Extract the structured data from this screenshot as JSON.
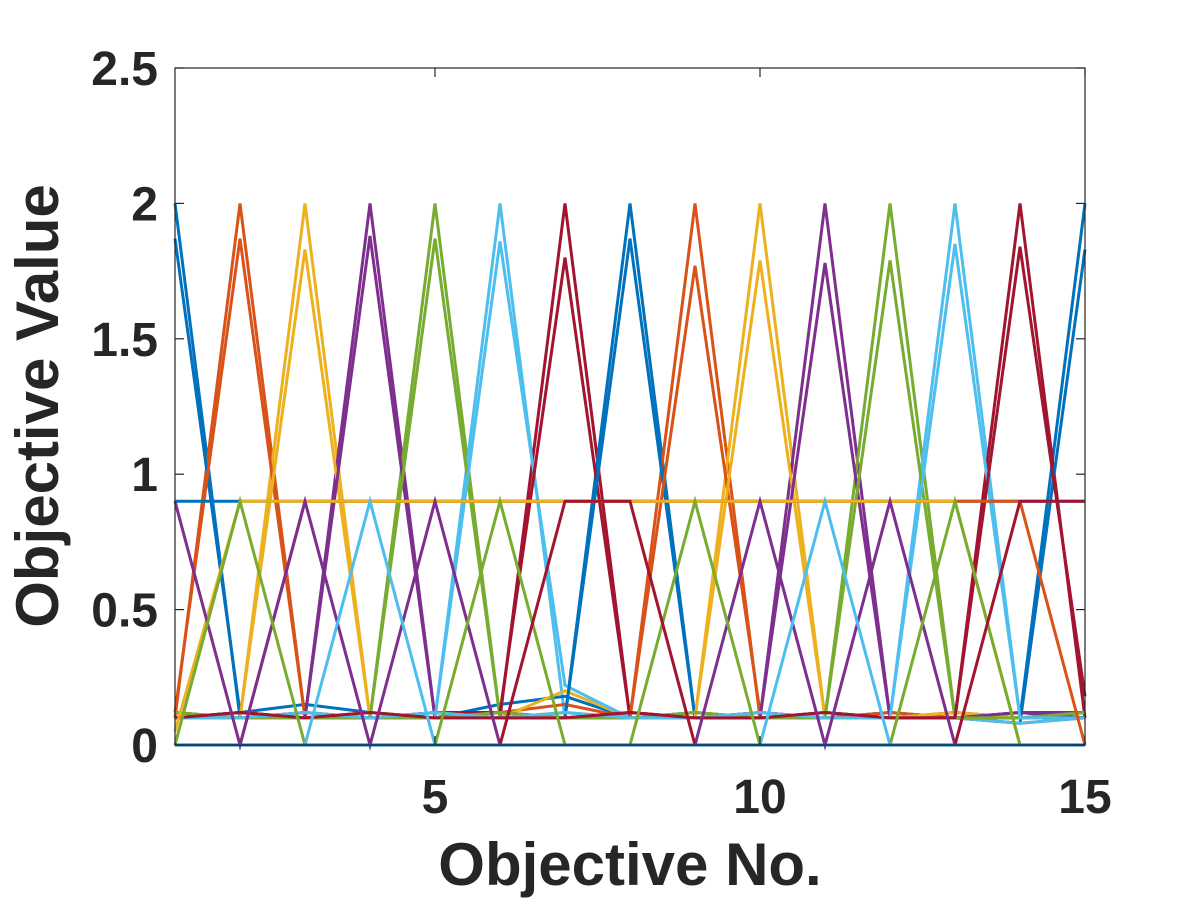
{
  "chart_data": {
    "type": "line",
    "title": "",
    "xlabel": "Objective No.",
    "ylabel": "Objective Value",
    "xlim": [
      1,
      15
    ],
    "ylim": [
      0,
      2.5
    ],
    "xticks": [
      5,
      10,
      15
    ],
    "xtick_labels": [
      "5",
      "10",
      "15"
    ],
    "yticks": [
      0,
      0.5,
      1,
      1.5,
      2,
      2.5
    ],
    "ytick_labels": [
      "0",
      "0.5",
      "1",
      "1.5",
      "2",
      "2.5"
    ],
    "grid": false,
    "legend": "none",
    "colors": [
      "#0072BD",
      "#D95319",
      "#EDB120",
      "#7E2F8E",
      "#77AC30",
      "#4DBEEE",
      "#A2142F"
    ],
    "x": [
      1,
      2,
      3,
      4,
      5,
      6,
      7,
      8,
      9,
      10,
      11,
      12,
      13,
      14,
      15
    ],
    "series": [
      {
        "values": [
          2.0,
          0.1,
          0.1,
          0.1,
          0.1,
          0.1,
          0.1,
          0.1,
          0.1,
          0.1,
          0.1,
          0.1,
          0.1,
          0.1,
          2.0
        ]
      },
      {
        "values": [
          0.1,
          2.0,
          0.1,
          0.1,
          0.1,
          0.1,
          0.1,
          0.1,
          0.1,
          0.1,
          0.1,
          0.1,
          0.1,
          0.1,
          0.1
        ]
      },
      {
        "values": [
          0.1,
          0.1,
          2.0,
          0.1,
          0.1,
          0.1,
          0.1,
          0.1,
          0.1,
          0.1,
          0.1,
          0.1,
          0.1,
          0.1,
          0.1
        ]
      },
      {
        "values": [
          0.1,
          0.1,
          0.1,
          2.0,
          0.1,
          0.1,
          0.1,
          0.1,
          0.1,
          0.1,
          0.1,
          0.1,
          0.1,
          0.1,
          0.1
        ]
      },
      {
        "values": [
          0.1,
          0.1,
          0.1,
          0.1,
          2.0,
          0.1,
          0.1,
          0.1,
          0.1,
          0.1,
          0.1,
          0.1,
          0.1,
          0.1,
          0.1
        ]
      },
      {
        "values": [
          0.1,
          0.1,
          0.1,
          0.1,
          0.1,
          2.0,
          0.1,
          0.1,
          0.1,
          0.1,
          0.1,
          0.1,
          0.1,
          0.1,
          0.1
        ]
      },
      {
        "values": [
          0.1,
          0.1,
          0.1,
          0.1,
          0.1,
          0.1,
          2.0,
          0.1,
          0.1,
          0.1,
          0.1,
          0.1,
          0.1,
          0.1,
          0.1
        ]
      },
      {
        "values": [
          0.1,
          0.1,
          0.1,
          0.1,
          0.1,
          0.1,
          0.1,
          2.0,
          0.1,
          0.1,
          0.1,
          0.1,
          0.1,
          0.1,
          0.1
        ]
      },
      {
        "values": [
          0.1,
          0.1,
          0.1,
          0.1,
          0.1,
          0.1,
          0.1,
          0.1,
          2.0,
          0.1,
          0.1,
          0.1,
          0.1,
          0.1,
          0.1
        ]
      },
      {
        "values": [
          0.1,
          0.1,
          0.1,
          0.1,
          0.1,
          0.1,
          0.1,
          0.1,
          0.1,
          2.0,
          0.1,
          0.1,
          0.1,
          0.1,
          0.1
        ]
      },
      {
        "values": [
          0.1,
          0.1,
          0.1,
          0.1,
          0.1,
          0.1,
          0.1,
          0.1,
          0.1,
          0.1,
          2.0,
          0.1,
          0.1,
          0.1,
          0.1
        ]
      },
      {
        "values": [
          0.1,
          0.1,
          0.1,
          0.1,
          0.1,
          0.1,
          0.1,
          0.1,
          0.1,
          0.1,
          0.1,
          2.0,
          0.1,
          0.1,
          0.1
        ]
      },
      {
        "values": [
          0.1,
          0.1,
          0.1,
          0.1,
          0.1,
          0.1,
          0.1,
          0.1,
          0.1,
          0.1,
          0.1,
          0.1,
          2.0,
          0.1,
          0.1
        ]
      },
      {
        "values": [
          0.1,
          0.1,
          0.1,
          0.1,
          0.1,
          0.1,
          0.1,
          0.1,
          0.1,
          0.1,
          0.1,
          0.1,
          0.1,
          2.0,
          0.1
        ]
      },
      {
        "values": [
          1.87,
          0.12,
          0.15,
          0.12,
          0.1,
          0.15,
          0.18,
          0.1,
          0.12,
          0.1,
          0.1,
          0.12,
          0.1,
          0.08,
          1.83
        ]
      },
      {
        "values": [
          0.12,
          1.87,
          0.1,
          0.12,
          0.1,
          0.12,
          0.15,
          0.1,
          0.1,
          0.12,
          0.1,
          0.1,
          0.1,
          0.08,
          0.1
        ]
      },
      {
        "values": [
          0.1,
          0.1,
          1.83,
          0.1,
          0.12,
          0.1,
          0.2,
          0.1,
          0.12,
          0.1,
          0.12,
          0.1,
          0.12,
          0.1,
          0.1
        ]
      },
      {
        "values": [
          0.1,
          0.12,
          0.1,
          1.88,
          0.1,
          0.12,
          0.1,
          0.12,
          0.1,
          0.1,
          0.1,
          0.12,
          0.1,
          0.12,
          0.12
        ]
      },
      {
        "values": [
          0.12,
          0.1,
          0.12,
          0.1,
          1.87,
          0.1,
          0.12,
          0.1,
          0.12,
          0.1,
          0.12,
          0.1,
          0.1,
          0.1,
          0.1
        ]
      },
      {
        "values": [
          0.1,
          0.12,
          0.1,
          0.12,
          0.1,
          1.86,
          0.22,
          0.1,
          0.12,
          0.1,
          0.1,
          0.12,
          0.1,
          0.08,
          0.1
        ]
      },
      {
        "values": [
          0.1,
          0.1,
          0.12,
          0.1,
          0.12,
          0.12,
          1.8,
          0.1,
          0.1,
          0.12,
          0.1,
          0.1,
          0.12,
          0.1,
          0.1
        ]
      },
      {
        "values": [
          0.1,
          0.12,
          0.1,
          0.1,
          0.1,
          0.1,
          0.1,
          1.87,
          0.1,
          0.1,
          0.12,
          0.1,
          0.1,
          0.12,
          0.1
        ]
      },
      {
        "values": [
          0.12,
          0.1,
          0.12,
          0.1,
          0.1,
          0.12,
          0.1,
          0.1,
          1.77,
          0.12,
          0.1,
          0.12,
          0.1,
          0.1,
          0.12
        ]
      },
      {
        "values": [
          0.1,
          0.1,
          0.1,
          0.12,
          0.1,
          0.1,
          0.12,
          0.1,
          0.1,
          1.79,
          0.1,
          0.1,
          0.12,
          0.1,
          0.1
        ]
      },
      {
        "values": [
          0.1,
          0.12,
          0.1,
          0.1,
          0.12,
          0.1,
          0.1,
          0.12,
          0.1,
          0.1,
          1.78,
          0.1,
          0.1,
          0.12,
          0.1
        ]
      },
      {
        "values": [
          0.12,
          0.1,
          0.1,
          0.1,
          0.1,
          0.12,
          0.1,
          0.1,
          0.12,
          0.1,
          0.1,
          1.79,
          0.1,
          0.1,
          0.12
        ]
      },
      {
        "values": [
          0.1,
          0.1,
          0.12,
          0.1,
          0.12,
          0.1,
          0.12,
          0.1,
          0.1,
          0.12,
          0.1,
          0.1,
          1.85,
          0.1,
          0.1
        ]
      },
      {
        "values": [
          0.1,
          0.12,
          0.1,
          0.12,
          0.1,
          0.1,
          0.1,
          0.12,
          0.1,
          0.1,
          0.12,
          0.1,
          0.1,
          1.84,
          0.18
        ]
      },
      {
        "values": [
          0.9,
          0.9,
          0.9,
          0.9,
          0.9,
          0.9,
          0.9,
          0.9,
          0.9,
          0.9,
          0.9,
          0.9,
          0.9,
          0.9,
          0.9
        ]
      },
      {
        "values": [
          0.0,
          0.0,
          0.9,
          0.9,
          0.9,
          0.9,
          0.9,
          0.9,
          0.9,
          0.9,
          0.9,
          0.9,
          0.9,
          0.9,
          0.0
        ]
      },
      {
        "values": [
          0.05,
          0.9,
          0.9,
          0.9,
          0.9,
          0.9,
          0.9,
          0.9,
          0.9,
          0.9,
          0.9,
          0.9,
          0.9,
          0.0,
          0.0
        ]
      },
      {
        "values": [
          0.9,
          0.0,
          0.9,
          0.0,
          0.9,
          0.0,
          0.0,
          0.0,
          0.0,
          0.9,
          0.0,
          0.9,
          0.0,
          0.0,
          0.0
        ]
      },
      {
        "values": [
          0.0,
          0.9,
          0.0,
          0.0,
          0.0,
          0.9,
          0.0,
          0.0,
          0.9,
          0.0,
          0.0,
          0.0,
          0.9,
          0.0,
          0.0
        ]
      },
      {
        "values": [
          0.0,
          0.0,
          0.0,
          0.9,
          0.0,
          0.0,
          0.0,
          0.0,
          0.0,
          0.0,
          0.9,
          0.0,
          0.0,
          0.0,
          0.0
        ]
      },
      {
        "values": [
          0.0,
          0.0,
          0.0,
          0.0,
          0.0,
          0.0,
          0.9,
          0.9,
          0.0,
          0.0,
          0.0,
          0.0,
          0.0,
          0.9,
          0.9
        ]
      },
      {
        "values": [
          0.0,
          0.0,
          0.0,
          0.0,
          0.0,
          0.0,
          0.0,
          0.0,
          0.0,
          0.0,
          0.0,
          0.0,
          0.0,
          0.0,
          0.0
        ]
      }
    ]
  }
}
